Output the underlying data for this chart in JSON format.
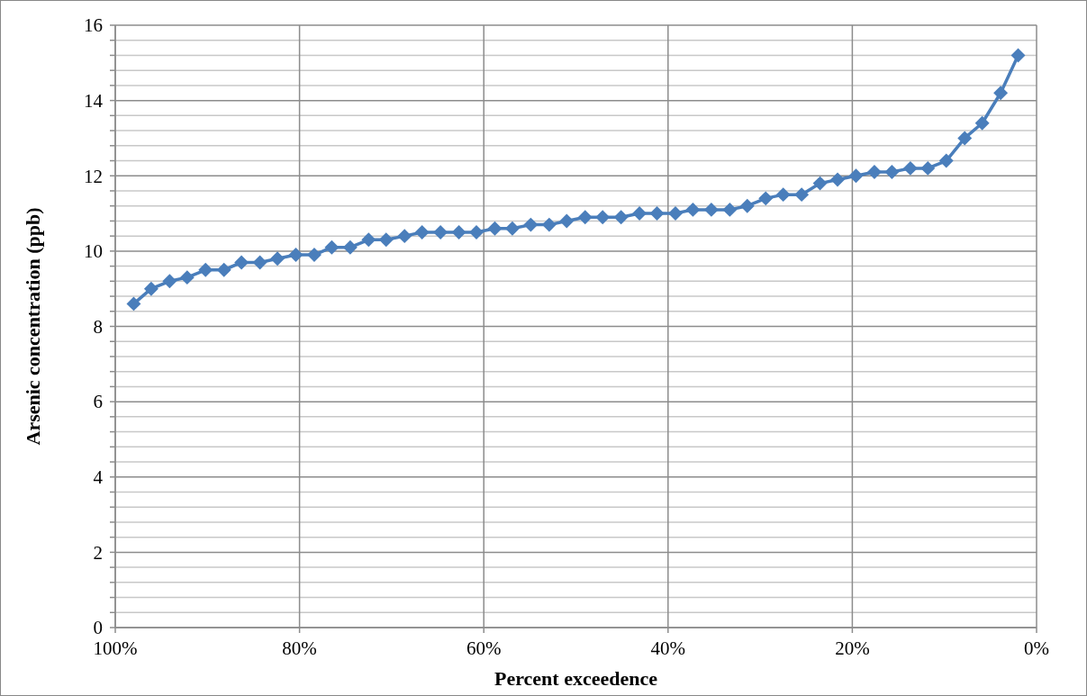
{
  "chart_data": {
    "type": "line",
    "xlabel": "Percent exceedence",
    "ylabel": "Arsenic concentration (ppb)",
    "x": [
      98.0,
      96.1,
      94.1,
      92.2,
      90.2,
      88.2,
      86.3,
      84.3,
      82.4,
      80.4,
      78.4,
      76.5,
      74.5,
      72.5,
      70.6,
      68.6,
      66.7,
      64.7,
      62.7,
      60.8,
      58.8,
      56.9,
      54.9,
      52.9,
      51.0,
      49.0,
      47.1,
      45.1,
      43.1,
      41.2,
      39.2,
      37.3,
      35.3,
      33.3,
      31.4,
      29.4,
      27.5,
      25.5,
      23.5,
      21.6,
      19.6,
      17.6,
      15.7,
      13.7,
      11.8,
      9.8,
      7.8,
      5.9,
      3.9,
      2.0
    ],
    "series": [
      {
        "color": "#4a7ebb",
        "values": [
          8.6,
          9.0,
          9.2,
          9.3,
          9.5,
          9.5,
          9.7,
          9.7,
          9.8,
          9.9,
          9.9,
          10.1,
          10.1,
          10.3,
          10.3,
          10.4,
          10.5,
          10.5,
          10.5,
          10.5,
          10.6,
          10.6,
          10.7,
          10.7,
          10.8,
          10.9,
          10.9,
          10.9,
          11.0,
          11.0,
          11.0,
          11.1,
          11.1,
          11.1,
          11.2,
          11.4,
          11.5,
          11.5,
          11.8,
          11.9,
          12.0,
          12.1,
          12.1,
          12.2,
          12.2,
          12.4,
          13.0,
          13.4,
          14.2,
          15.2
        ]
      }
    ],
    "xlim": [
      100,
      0
    ],
    "xticks": [
      {
        "value": 100,
        "label": "100%"
      },
      {
        "value": 80,
        "label": "80%"
      },
      {
        "value": 60,
        "label": "60%"
      },
      {
        "value": 40,
        "label": "40%"
      },
      {
        "value": 20,
        "label": "20%"
      },
      {
        "value": 0,
        "label": "0%"
      }
    ],
    "ylim": [
      0,
      16
    ],
    "yticks": [
      0,
      {
        "value": 0.4,
        "label": null
      },
      {
        "value": 0.8,
        "label": null
      },
      {
        "value": 1.2,
        "label": null
      },
      {
        "value": 1.6,
        "label": null
      },
      2,
      {
        "value": 2.4,
        "label": null
      },
      {
        "value": 2.8,
        "label": null
      },
      {
        "value": 3.2,
        "label": null
      },
      {
        "value": 3.6,
        "label": null
      },
      4,
      {
        "value": 4.4,
        "label": null
      },
      {
        "value": 4.8,
        "label": null
      },
      {
        "value": 5.2,
        "label": null
      },
      {
        "value": 5.6,
        "label": null
      },
      6,
      {
        "value": 6.4,
        "label": null
      },
      {
        "value": 6.8,
        "label": null
      },
      {
        "value": 7.2,
        "label": null
      },
      {
        "value": 7.6,
        "label": null
      },
      8,
      {
        "value": 8.4,
        "label": null
      },
      {
        "value": 8.8,
        "label": null
      },
      {
        "value": 9.2,
        "label": null
      },
      {
        "value": 9.6,
        "label": null
      },
      10,
      {
        "value": 10.4,
        "label": null
      },
      {
        "value": 10.8,
        "label": null
      },
      {
        "value": 11.2,
        "label": null
      },
      {
        "value": 11.6,
        "label": null
      },
      12,
      {
        "value": 12.4,
        "label": null
      },
      {
        "value": 12.8,
        "label": null
      },
      {
        "value": 13.2,
        "label": null
      },
      {
        "value": 13.6,
        "label": null
      },
      14,
      {
        "value": 14.4,
        "label": null
      },
      {
        "value": 14.8,
        "label": null
      },
      {
        "value": 15.2,
        "label": null
      },
      {
        "value": 15.6,
        "label": null
      },
      16
    ],
    "grid": true,
    "marker": "diamond",
    "line_style": "solid"
  }
}
